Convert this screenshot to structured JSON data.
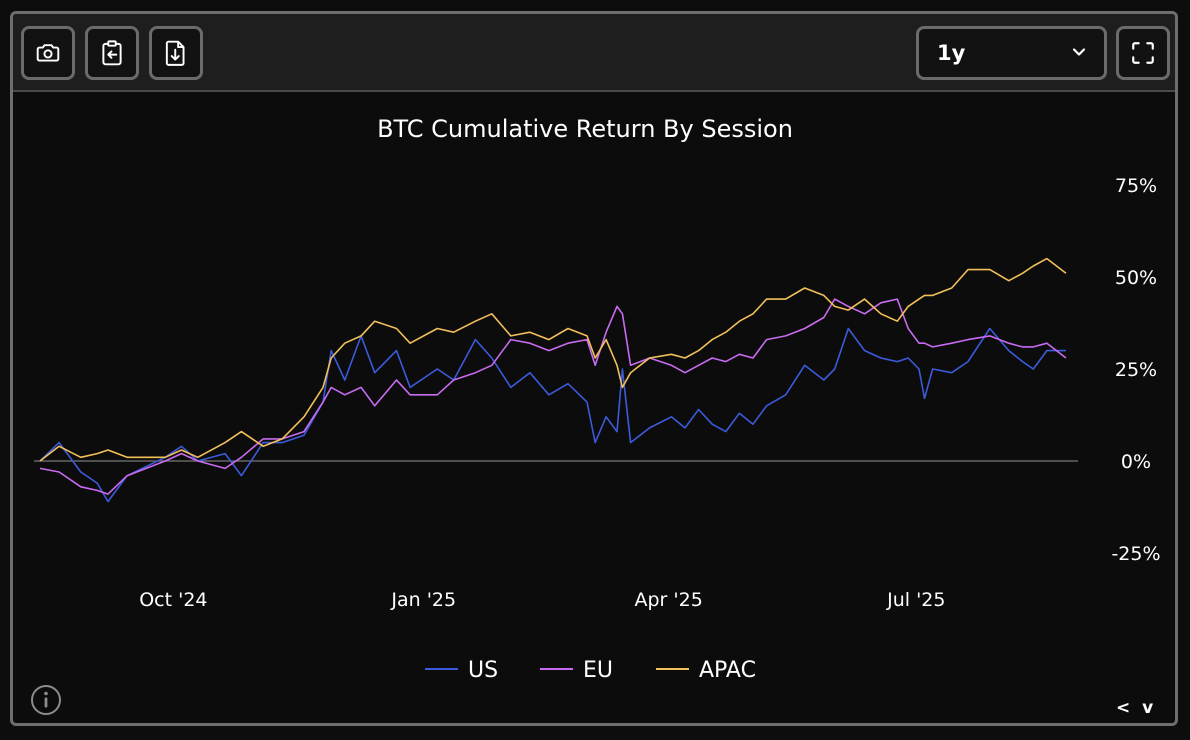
{
  "toolbar": {
    "buttons": [
      {
        "icon": "camera-icon"
      },
      {
        "icon": "clipboard-export-icon"
      },
      {
        "icon": "file-download-icon"
      }
    ],
    "range_select": {
      "value": "1y"
    },
    "fullscreen_icon": "fullscreen-icon"
  },
  "chart_data": {
    "type": "line",
    "title": "BTC Cumulative Return By Session",
    "y_axis": {
      "side": "right",
      "ylim": [
        -25,
        75
      ],
      "ticks": [
        75,
        50,
        25,
        0,
        -25
      ],
      "tick_labels": [
        "75%",
        "50%",
        "25%",
        "0%",
        "-25%"
      ]
    },
    "x_axis": {
      "range": [
        "2024-08-13",
        "2025-08-25"
      ],
      "ticks": [
        "2024-10-01",
        "2025-01-01",
        "2025-04-01",
        "2025-07-01"
      ],
      "tick_labels": [
        "Oct '24",
        "Jan '25",
        "Apr '25",
        "Jul '25"
      ]
    },
    "zero_line": true,
    "grid": false,
    "legend": {
      "placement": "bottom-center"
    },
    "series": [
      {
        "name": "US",
        "color": "#3b5bdb",
        "points": [
          [
            "2024-08-13",
            0
          ],
          [
            "2024-08-20",
            5
          ],
          [
            "2024-08-28",
            -3
          ],
          [
            "2024-09-03",
            -6
          ],
          [
            "2024-09-07",
            -11
          ],
          [
            "2024-09-14",
            -4
          ],
          [
            "2024-09-28",
            1
          ],
          [
            "2024-10-04",
            4
          ],
          [
            "2024-10-10",
            0
          ],
          [
            "2024-10-20",
            2
          ],
          [
            "2024-10-26",
            -4
          ],
          [
            "2024-11-03",
            5
          ],
          [
            "2024-11-10",
            5
          ],
          [
            "2024-11-18",
            7
          ],
          [
            "2024-11-25",
            16
          ],
          [
            "2024-11-28",
            30
          ],
          [
            "2024-12-03",
            22
          ],
          [
            "2024-12-09",
            34
          ],
          [
            "2024-12-14",
            24
          ],
          [
            "2024-12-22",
            30
          ],
          [
            "2024-12-27",
            20
          ],
          [
            "2025-01-06",
            25
          ],
          [
            "2025-01-12",
            22
          ],
          [
            "2025-01-20",
            33
          ],
          [
            "2025-01-26",
            28
          ],
          [
            "2025-02-02",
            20
          ],
          [
            "2025-02-09",
            24
          ],
          [
            "2025-02-16",
            18
          ],
          [
            "2025-02-23",
            21
          ],
          [
            "2025-03-02",
            16
          ],
          [
            "2025-03-05",
            5
          ],
          [
            "2025-03-09",
            12
          ],
          [
            "2025-03-13",
            8
          ],
          [
            "2025-03-15",
            25
          ],
          [
            "2025-03-18",
            5
          ],
          [
            "2025-03-25",
            9
          ],
          [
            "2025-04-02",
            12
          ],
          [
            "2025-04-07",
            9
          ],
          [
            "2025-04-12",
            14
          ],
          [
            "2025-04-17",
            10
          ],
          [
            "2025-04-22",
            8
          ],
          [
            "2025-04-27",
            13
          ],
          [
            "2025-05-02",
            10
          ],
          [
            "2025-05-07",
            15
          ],
          [
            "2025-05-14",
            18
          ],
          [
            "2025-05-21",
            26
          ],
          [
            "2025-05-28",
            22
          ],
          [
            "2025-06-01",
            25
          ],
          [
            "2025-06-06",
            36
          ],
          [
            "2025-06-12",
            30
          ],
          [
            "2025-06-18",
            28
          ],
          [
            "2025-06-24",
            27
          ],
          [
            "2025-06-28",
            28
          ],
          [
            "2025-07-02",
            25
          ],
          [
            "2025-07-04",
            17
          ],
          [
            "2025-07-07",
            25
          ],
          [
            "2025-07-14",
            24
          ],
          [
            "2025-07-20",
            27
          ],
          [
            "2025-07-28",
            36
          ],
          [
            "2025-08-04",
            30
          ],
          [
            "2025-08-09",
            27
          ],
          [
            "2025-08-13",
            25
          ],
          [
            "2025-08-18",
            30
          ],
          [
            "2025-08-25",
            30
          ]
        ]
      },
      {
        "name": "EU",
        "color": "#c86bf0",
        "points": [
          [
            "2024-08-13",
            -2
          ],
          [
            "2024-08-20",
            -3
          ],
          [
            "2024-08-28",
            -7
          ],
          [
            "2024-09-03",
            -8
          ],
          [
            "2024-09-07",
            -9
          ],
          [
            "2024-09-14",
            -4
          ],
          [
            "2024-09-28",
            0
          ],
          [
            "2024-10-04",
            2
          ],
          [
            "2024-10-10",
            0
          ],
          [
            "2024-10-20",
            -2
          ],
          [
            "2024-10-26",
            1
          ],
          [
            "2024-11-03",
            6
          ],
          [
            "2024-11-10",
            6
          ],
          [
            "2024-11-18",
            8
          ],
          [
            "2024-11-25",
            16
          ],
          [
            "2024-11-28",
            20
          ],
          [
            "2024-12-03",
            18
          ],
          [
            "2024-12-09",
            20
          ],
          [
            "2024-12-14",
            15
          ],
          [
            "2024-12-22",
            22
          ],
          [
            "2024-12-27",
            18
          ],
          [
            "2025-01-06",
            18
          ],
          [
            "2025-01-12",
            22
          ],
          [
            "2025-01-20",
            24
          ],
          [
            "2025-01-26",
            26
          ],
          [
            "2025-02-02",
            33
          ],
          [
            "2025-02-09",
            32
          ],
          [
            "2025-02-16",
            30
          ],
          [
            "2025-02-23",
            32
          ],
          [
            "2025-03-02",
            33
          ],
          [
            "2025-03-05",
            26
          ],
          [
            "2025-03-09",
            35
          ],
          [
            "2025-03-13",
            42
          ],
          [
            "2025-03-15",
            40
          ],
          [
            "2025-03-18",
            26
          ],
          [
            "2025-03-25",
            28
          ],
          [
            "2025-04-02",
            26
          ],
          [
            "2025-04-07",
            24
          ],
          [
            "2025-04-12",
            26
          ],
          [
            "2025-04-17",
            28
          ],
          [
            "2025-04-22",
            27
          ],
          [
            "2025-04-27",
            29
          ],
          [
            "2025-05-02",
            28
          ],
          [
            "2025-05-07",
            33
          ],
          [
            "2025-05-14",
            34
          ],
          [
            "2025-05-21",
            36
          ],
          [
            "2025-05-28",
            39
          ],
          [
            "2025-06-01",
            44
          ],
          [
            "2025-06-06",
            42
          ],
          [
            "2025-06-12",
            40
          ],
          [
            "2025-06-18",
            43
          ],
          [
            "2025-06-24",
            44
          ],
          [
            "2025-06-28",
            36
          ],
          [
            "2025-07-02",
            32
          ],
          [
            "2025-07-04",
            32
          ],
          [
            "2025-07-07",
            31
          ],
          [
            "2025-07-14",
            32
          ],
          [
            "2025-07-20",
            33
          ],
          [
            "2025-07-28",
            34
          ],
          [
            "2025-08-04",
            32
          ],
          [
            "2025-08-09",
            31
          ],
          [
            "2025-08-13",
            31
          ],
          [
            "2025-08-18",
            32
          ],
          [
            "2025-08-25",
            28
          ]
        ]
      },
      {
        "name": "APAC",
        "color": "#f2c05a",
        "points": [
          [
            "2024-08-13",
            0
          ],
          [
            "2024-08-20",
            4
          ],
          [
            "2024-08-28",
            1
          ],
          [
            "2024-09-03",
            2
          ],
          [
            "2024-09-07",
            3
          ],
          [
            "2024-09-14",
            1
          ],
          [
            "2024-09-28",
            1
          ],
          [
            "2024-10-04",
            3
          ],
          [
            "2024-10-10",
            1
          ],
          [
            "2024-10-20",
            5
          ],
          [
            "2024-10-26",
            8
          ],
          [
            "2024-11-03",
            4
          ],
          [
            "2024-11-10",
            6
          ],
          [
            "2024-11-18",
            12
          ],
          [
            "2024-11-25",
            20
          ],
          [
            "2024-11-28",
            28
          ],
          [
            "2024-12-03",
            32
          ],
          [
            "2024-12-09",
            34
          ],
          [
            "2024-12-14",
            38
          ],
          [
            "2024-12-22",
            36
          ],
          [
            "2024-12-27",
            32
          ],
          [
            "2025-01-06",
            36
          ],
          [
            "2025-01-12",
            35
          ],
          [
            "2025-01-20",
            38
          ],
          [
            "2025-01-26",
            40
          ],
          [
            "2025-02-02",
            34
          ],
          [
            "2025-02-09",
            35
          ],
          [
            "2025-02-16",
            33
          ],
          [
            "2025-02-23",
            36
          ],
          [
            "2025-03-02",
            34
          ],
          [
            "2025-03-05",
            28
          ],
          [
            "2025-03-09",
            33
          ],
          [
            "2025-03-13",
            26
          ],
          [
            "2025-03-15",
            20
          ],
          [
            "2025-03-18",
            24
          ],
          [
            "2025-03-25",
            28
          ],
          [
            "2025-04-02",
            29
          ],
          [
            "2025-04-07",
            28
          ],
          [
            "2025-04-12",
            30
          ],
          [
            "2025-04-17",
            33
          ],
          [
            "2025-04-22",
            35
          ],
          [
            "2025-04-27",
            38
          ],
          [
            "2025-05-02",
            40
          ],
          [
            "2025-05-07",
            44
          ],
          [
            "2025-05-14",
            44
          ],
          [
            "2025-05-21",
            47
          ],
          [
            "2025-05-28",
            45
          ],
          [
            "2025-06-01",
            42
          ],
          [
            "2025-06-06",
            41
          ],
          [
            "2025-06-12",
            44
          ],
          [
            "2025-06-18",
            40
          ],
          [
            "2025-06-24",
            38
          ],
          [
            "2025-06-28",
            42
          ],
          [
            "2025-07-02",
            44
          ],
          [
            "2025-07-04",
            45
          ],
          [
            "2025-07-07",
            45
          ],
          [
            "2025-07-14",
            47
          ],
          [
            "2025-07-20",
            52
          ],
          [
            "2025-07-28",
            52
          ],
          [
            "2025-08-04",
            49
          ],
          [
            "2025-08-09",
            51
          ],
          [
            "2025-08-13",
            53
          ],
          [
            "2025-08-18",
            55
          ],
          [
            "2025-08-25",
            51
          ]
        ]
      }
    ]
  },
  "footer": {
    "info_icon": "info-icon",
    "nav_arrows": "< v >"
  }
}
